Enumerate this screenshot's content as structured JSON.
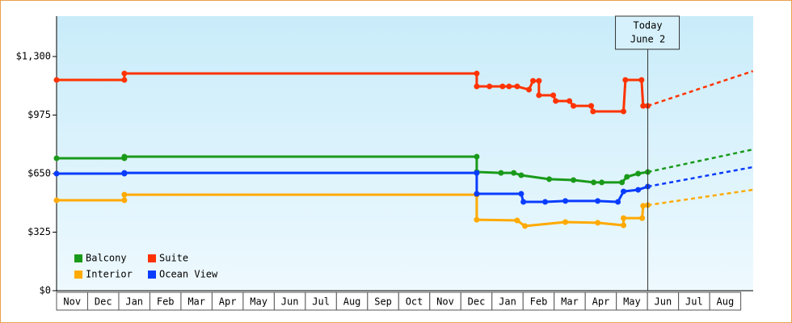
{
  "chart_data": {
    "type": "line",
    "ylim": [
      0,
      1524
    ],
    "yticks": [
      {
        "value": 0,
        "label": "$0"
      },
      {
        "value": 325,
        "label": "$325"
      },
      {
        "value": 650,
        "label": "$650"
      },
      {
        "value": 975,
        "label": "$975"
      },
      {
        "value": 1300,
        "label": "$1,300"
      }
    ],
    "xlim": [
      0,
      22.4
    ],
    "xticks": [
      {
        "value": 0.5,
        "label": "Nov"
      },
      {
        "value": 1.5,
        "label": "Dec"
      },
      {
        "value": 2.5,
        "label": "Jan"
      },
      {
        "value": 3.5,
        "label": "Feb"
      },
      {
        "value": 4.5,
        "label": "Mar"
      },
      {
        "value": 5.5,
        "label": "Apr"
      },
      {
        "value": 6.5,
        "label": "May"
      },
      {
        "value": 7.5,
        "label": "Jun"
      },
      {
        "value": 8.5,
        "label": "Jul"
      },
      {
        "value": 9.5,
        "label": "Aug"
      },
      {
        "value": 10.5,
        "label": "Sep"
      },
      {
        "value": 11.5,
        "label": "Oct"
      },
      {
        "value": 12.5,
        "label": "Nov"
      },
      {
        "value": 13.5,
        "label": "Dec"
      },
      {
        "value": 14.5,
        "label": "Jan"
      },
      {
        "value": 15.5,
        "label": "Feb"
      },
      {
        "value": 16.5,
        "label": "Mar"
      },
      {
        "value": 17.5,
        "label": "Apr"
      },
      {
        "value": 18.5,
        "label": "May"
      },
      {
        "value": 19.5,
        "label": "Jun"
      },
      {
        "value": 20.5,
        "label": "Jul"
      },
      {
        "value": 21.5,
        "label": "Aug"
      }
    ],
    "annotation": {
      "x": 19.01,
      "text": [
        "Today",
        "June 2"
      ]
    },
    "series": [
      {
        "name": "Balcony",
        "color": "#1a9a1a",
        "x": [
          0,
          2.18,
          2.18,
          13.51,
          13.51,
          14.29,
          14.7,
          14.94,
          15.84,
          16.62,
          17.27,
          17.53,
          18.18,
          18.34,
          18.7,
          19.01
        ],
        "values": [
          735,
          735,
          744,
          744,
          659,
          654,
          654,
          641,
          619,
          614,
          601,
          601,
          601,
          632,
          650,
          659
        ],
        "forecast_x": [
          19.01,
          22.39
        ],
        "forecast_values": [
          659,
          784
        ]
      },
      {
        "name": "Suite",
        "color": "#ff3300",
        "x": [
          0,
          2.18,
          2.18,
          13.51,
          13.51,
          13.92,
          14.34,
          14.55,
          14.81,
          15.19,
          15.32,
          15.51,
          15.51,
          15.97,
          16.05,
          16.49,
          16.62,
          17.19,
          17.25,
          18.23,
          18.29,
          18.81,
          18.86,
          19.01
        ],
        "values": [
          1170,
          1170,
          1206,
          1206,
          1134,
          1134,
          1134,
          1134,
          1134,
          1116,
          1165,
          1165,
          1085,
          1085,
          1053,
          1053,
          1026,
          1026,
          995,
          995,
          1170,
          1170,
          1026,
          1026
        ],
        "forecast_x": [
          19.01,
          22.39
        ],
        "forecast_values": [
          1026,
          1219
        ]
      },
      {
        "name": "Interior",
        "color": "#ffaa00",
        "x": [
          0,
          2.18,
          2.18,
          13.51,
          13.51,
          14.81,
          15.06,
          16.36,
          17.4,
          18.23,
          18.23,
          18.83,
          18.86,
          19.01
        ],
        "values": [
          502,
          502,
          533,
          533,
          394,
          390,
          359,
          381,
          377,
          363,
          403,
          403,
          471,
          475
        ],
        "forecast_x": [
          19.01,
          22.39
        ],
        "forecast_values": [
          475,
          560
        ]
      },
      {
        "name": "Ocean View",
        "color": "#0a3cff",
        "x": [
          0,
          2.18,
          2.18,
          13.51,
          13.51,
          14.94,
          15.01,
          15.71,
          16.36,
          17.4,
          18.05,
          18.23,
          18.7,
          19.01
        ],
        "values": [
          650,
          650,
          654,
          654,
          538,
          538,
          493,
          493,
          498,
          498,
          493,
          551,
          560,
          578
        ],
        "forecast_x": [
          19.01,
          22.39
        ],
        "forecast_values": [
          578,
          686
        ]
      }
    ]
  }
}
